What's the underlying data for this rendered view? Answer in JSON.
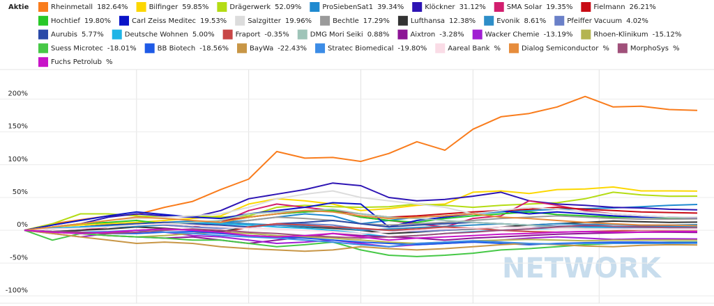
{
  "chart_data": {
    "type": "line",
    "legend_title": "Aktie",
    "watermark": "NETWORK",
    "x": [
      0,
      1,
      2,
      3,
      4,
      5,
      6,
      7,
      8,
      9,
      10,
      11,
      12,
      13,
      14,
      15,
      16,
      17,
      18,
      19,
      20,
      21,
      22,
      23,
      24
    ],
    "xlim": [
      0,
      24
    ],
    "xticks": [
      4,
      8,
      12,
      16,
      20.5
    ],
    "ylim": [
      -108,
      245
    ],
    "yticks": [
      {
        "value": -100,
        "label": "-100%"
      },
      {
        "value": -50,
        "label": "-50%"
      },
      {
        "value": 0,
        "label": "0%"
      },
      {
        "value": 50,
        "label": "50%"
      },
      {
        "value": 100,
        "label": "100%"
      },
      {
        "value": 150,
        "label": "150%"
      },
      {
        "value": 200,
        "label": "200%"
      }
    ],
    "grid": true,
    "series": [
      {
        "name": "Rheinmetall",
        "label": "182.64%",
        "color": "#f97c1c",
        "values": [
          0,
          10,
          16,
          22,
          24,
          35,
          44,
          62,
          78,
          120,
          110,
          111,
          105,
          117,
          135,
          122,
          154,
          173,
          178,
          188,
          204,
          188,
          189,
          184,
          182.64
        ]
      },
      {
        "name": "Bilfinger",
        "label": "59.85%",
        "color": "#fcd700",
        "values": [
          0,
          5,
          8,
          10,
          12,
          15,
          18,
          22,
          40,
          48,
          45,
          40,
          30,
          33,
          38,
          40,
          58,
          60,
          56,
          62,
          63,
          66,
          60,
          60,
          59.85
        ]
      },
      {
        "name": "Drägerwerk",
        "label": "52.09%",
        "color": "#b4dc14",
        "values": [
          0,
          10,
          25,
          25,
          22,
          20,
          22,
          20,
          22,
          35,
          38,
          36,
          35,
          36,
          40,
          38,
          35,
          38,
          40,
          42,
          48,
          58,
          54,
          52,
          52.09
        ]
      },
      {
        "name": "ProSiebenSat1",
        "label": "39.34%",
        "color": "#1f8ad0",
        "values": [
          0,
          3,
          5,
          8,
          10,
          12,
          14,
          12,
          15,
          20,
          25,
          22,
          10,
          15,
          20,
          22,
          25,
          28,
          30,
          32,
          33,
          34,
          36,
          38,
          39.34
        ]
      },
      {
        "name": "Klöckner",
        "label": "31.12%",
        "color": "#2d14b4",
        "values": [
          0,
          5,
          10,
          20,
          25,
          22,
          20,
          30,
          48,
          55,
          62,
          72,
          68,
          50,
          45,
          47,
          52,
          58,
          45,
          40,
          38,
          35,
          34,
          32,
          31.12
        ]
      },
      {
        "name": "SMA Solar",
        "label": "19.35%",
        "color": "#d21e6e",
        "values": [
          0,
          -2,
          0,
          5,
          10,
          8,
          5,
          12,
          30,
          40,
          35,
          30,
          20,
          15,
          10,
          5,
          18,
          22,
          45,
          38,
          30,
          25,
          22,
          20,
          19.35
        ]
      },
      {
        "name": "Fielmann",
        "label": "26.21%",
        "color": "#c80a14",
        "values": [
          0,
          2,
          5,
          8,
          10,
          12,
          10,
          15,
          20,
          25,
          28,
          30,
          25,
          20,
          22,
          25,
          28,
          30,
          32,
          35,
          32,
          30,
          28,
          27,
          26.21
        ]
      },
      {
        "name": "Hochtief",
        "label": "19.80%",
        "color": "#28c828",
        "values": [
          0,
          5,
          10,
          12,
          15,
          10,
          8,
          12,
          20,
          25,
          28,
          30,
          20,
          15,
          12,
          18,
          22,
          25,
          28,
          24,
          22,
          20,
          20,
          19,
          19.8
        ]
      },
      {
        "name": "Carl Zeiss Meditec",
        "label": "19.53%",
        "color": "#0a14c8",
        "values": [
          0,
          8,
          15,
          22,
          28,
          24,
          20,
          18,
          25,
          30,
          35,
          42,
          40,
          5,
          15,
          20,
          25,
          30,
          25,
          28,
          25,
          22,
          20,
          20,
          19.53
        ]
      },
      {
        "name": "Salzgitter",
        "label": "19.96%",
        "color": "#dcdcdc",
        "values": [
          0,
          5,
          10,
          15,
          18,
          20,
          22,
          25,
          35,
          48,
          55,
          60,
          50,
          45,
          40,
          35,
          25,
          30,
          35,
          32,
          28,
          25,
          22,
          20,
          19.96
        ]
      },
      {
        "name": "Bechtle",
        "label": "17.29%",
        "color": "#9a9a9a",
        "values": [
          0,
          2,
          5,
          8,
          10,
          12,
          10,
          8,
          15,
          20,
          18,
          15,
          10,
          8,
          10,
          12,
          15,
          18,
          20,
          22,
          20,
          18,
          17,
          17,
          17.29
        ]
      },
      {
        "name": "Lufthansa",
        "label": "12.38%",
        "color": "#333333",
        "values": [
          0,
          -2,
          0,
          2,
          5,
          3,
          0,
          -2,
          5,
          8,
          5,
          3,
          0,
          -5,
          -3,
          0,
          2,
          5,
          8,
          10,
          12,
          14,
          13,
          12,
          12.38
        ]
      },
      {
        "name": "Evonik",
        "label": "8.61%",
        "color": "#2e8ec8",
        "values": [
          0,
          2,
          4,
          5,
          6,
          8,
          10,
          12,
          10,
          8,
          6,
          5,
          0,
          2,
          4,
          6,
          8,
          10,
          8,
          10,
          9,
          9,
          8,
          8,
          8.61
        ]
      },
      {
        "name": "Pfeiffer Vacuum",
        "label": "4.02%",
        "color": "#6a80c8",
        "values": [
          0,
          3,
          5,
          8,
          10,
          8,
          5,
          3,
          5,
          8,
          10,
          8,
          2,
          0,
          -2,
          0,
          3,
          5,
          4,
          6,
          5,
          4,
          4,
          4,
          4.02
        ]
      },
      {
        "name": "Aurubis",
        "label": "5.77%",
        "color": "#2a4aa8",
        "values": [
          0,
          2,
          5,
          8,
          10,
          12,
          10,
          8,
          5,
          10,
          12,
          15,
          10,
          5,
          8,
          10,
          12,
          10,
          8,
          6,
          7,
          6,
          6,
          6,
          5.77
        ]
      },
      {
        "name": "Deutsche Wohnen",
        "label": "5.00%",
        "color": "#1eb4e6",
        "values": [
          0,
          3,
          5,
          6,
          8,
          10,
          12,
          10,
          8,
          5,
          3,
          0,
          -5,
          -10,
          -8,
          -5,
          -2,
          0,
          2,
          3,
          4,
          5,
          5,
          5,
          5.0
        ]
      },
      {
        "name": "Fraport",
        "label": "-0.35%",
        "color": "#c84646",
        "values": [
          0,
          -2,
          -5,
          -3,
          0,
          2,
          0,
          -5,
          5,
          10,
          8,
          5,
          3,
          0,
          2,
          5,
          3,
          0,
          -2,
          -3,
          -2,
          -1,
          0,
          -0.5,
          -0.35
        ]
      },
      {
        "name": "DMG Mori Seiki",
        "label": "0.88%",
        "color": "#9ec4b8",
        "values": [
          0,
          2,
          3,
          5,
          8,
          10,
          12,
          15,
          25,
          28,
          30,
          32,
          25,
          20,
          18,
          15,
          12,
          10,
          8,
          5,
          3,
          2,
          1,
          1,
          0.88
        ]
      },
      {
        "name": "Aixtron",
        "label": "-3.28%",
        "color": "#8c1496",
        "values": [
          0,
          -3,
          -5,
          -8,
          -10,
          -12,
          -10,
          -15,
          -20,
          -15,
          -10,
          -5,
          -8,
          -10,
          -12,
          -15,
          -12,
          -10,
          -8,
          -6,
          -5,
          -4,
          -3,
          -3,
          -3.28
        ]
      },
      {
        "name": "Wacker Chemie",
        "label": "-13.19%",
        "color": "#a01ed2",
        "values": [
          0,
          -5,
          -10,
          -5,
          0,
          -3,
          -8,
          -10,
          -15,
          -20,
          -18,
          -15,
          -20,
          -25,
          -22,
          -20,
          -18,
          -15,
          -12,
          -10,
          -12,
          -14,
          -13,
          -13,
          -13.19
        ]
      },
      {
        "name": "Rhoen-Klinikum",
        "label": "-15.12%",
        "color": "#b4b450",
        "values": [
          0,
          -2,
          -5,
          -8,
          -10,
          -8,
          -5,
          -3,
          -5,
          -8,
          -10,
          -12,
          -15,
          -18,
          -20,
          -18,
          -16,
          -15,
          -14,
          -15,
          -16,
          -15,
          -15,
          -15,
          -15.12
        ]
      },
      {
        "name": "Suess Microtec",
        "label": "-18.01%",
        "color": "#46c846",
        "values": [
          0,
          -15,
          -5,
          -8,
          -10,
          -12,
          -15,
          -15,
          -20,
          -25,
          -22,
          -18,
          -30,
          -38,
          -40,
          -38,
          -35,
          -30,
          -28,
          -25,
          -22,
          -20,
          -19,
          -18,
          -18.01
        ]
      },
      {
        "name": "BB Biotech",
        "label": "-18.56%",
        "color": "#1e5ae6",
        "values": [
          0,
          -2,
          -3,
          -5,
          -5,
          -3,
          -2,
          -5,
          -8,
          -10,
          -12,
          -15,
          -18,
          -20,
          -22,
          -20,
          -18,
          -20,
          -22,
          -20,
          -19,
          -18,
          -18,
          -18.5,
          -18.56
        ]
      },
      {
        "name": "BayWa",
        "label": "-22.43%",
        "color": "#c89646",
        "values": [
          0,
          -5,
          -10,
          -15,
          -20,
          -18,
          -20,
          -25,
          -28,
          -30,
          -32,
          -30,
          -25,
          -28,
          -30,
          -28,
          -25,
          -22,
          -20,
          -22,
          -24,
          -25,
          -23,
          -22,
          -22.43
        ]
      },
      {
        "name": "Stratec Biomedical",
        "label": "-19.80%",
        "color": "#3c8ce6",
        "values": [
          0,
          -2,
          -3,
          -2,
          0,
          -3,
          -5,
          -8,
          -10,
          -12,
          -15,
          -18,
          -22,
          -25,
          -20,
          -18,
          -16,
          -18,
          -20,
          -21,
          -20,
          -20,
          -20,
          -20,
          -19.8
        ]
      },
      {
        "name": "Aareal Bank",
        "label": "%",
        "color": "#fadce6",
        "values": [
          0,
          2,
          3,
          5,
          8,
          10,
          8,
          5,
          3,
          2,
          0,
          -2,
          -5,
          -3,
          0,
          2,
          3,
          5,
          4,
          3,
          2,
          2,
          1,
          1,
          1
        ]
      },
      {
        "name": "Dialog Semiconductor",
        "label": "%",
        "color": "#e68c3c",
        "values": [
          0,
          5,
          10,
          15,
          20,
          18,
          15,
          12,
          20,
          25,
          30,
          28,
          22,
          18,
          20,
          22,
          25,
          20,
          18,
          15,
          12,
          10,
          8,
          8,
          7
        ]
      },
      {
        "name": "MorphoSys",
        "label": "%",
        "color": "#a0507a",
        "values": [
          0,
          -2,
          -3,
          -5,
          -3,
          0,
          2,
          0,
          -3,
          -5,
          -8,
          -10,
          -12,
          -10,
          -8,
          -5,
          -3,
          0,
          2,
          5,
          8,
          6,
          5,
          4,
          4
        ]
      },
      {
        "name": "Fuchs Petrolub",
        "label": "%",
        "color": "#c814c8",
        "values": [
          0,
          -3,
          -5,
          -3,
          0,
          2,
          0,
          -3,
          -8,
          -10,
          -8,
          -5,
          -10,
          -15,
          -12,
          -10,
          -8,
          -6,
          -5,
          -3,
          -2,
          -3,
          -3,
          -2,
          -2
        ]
      }
    ]
  }
}
